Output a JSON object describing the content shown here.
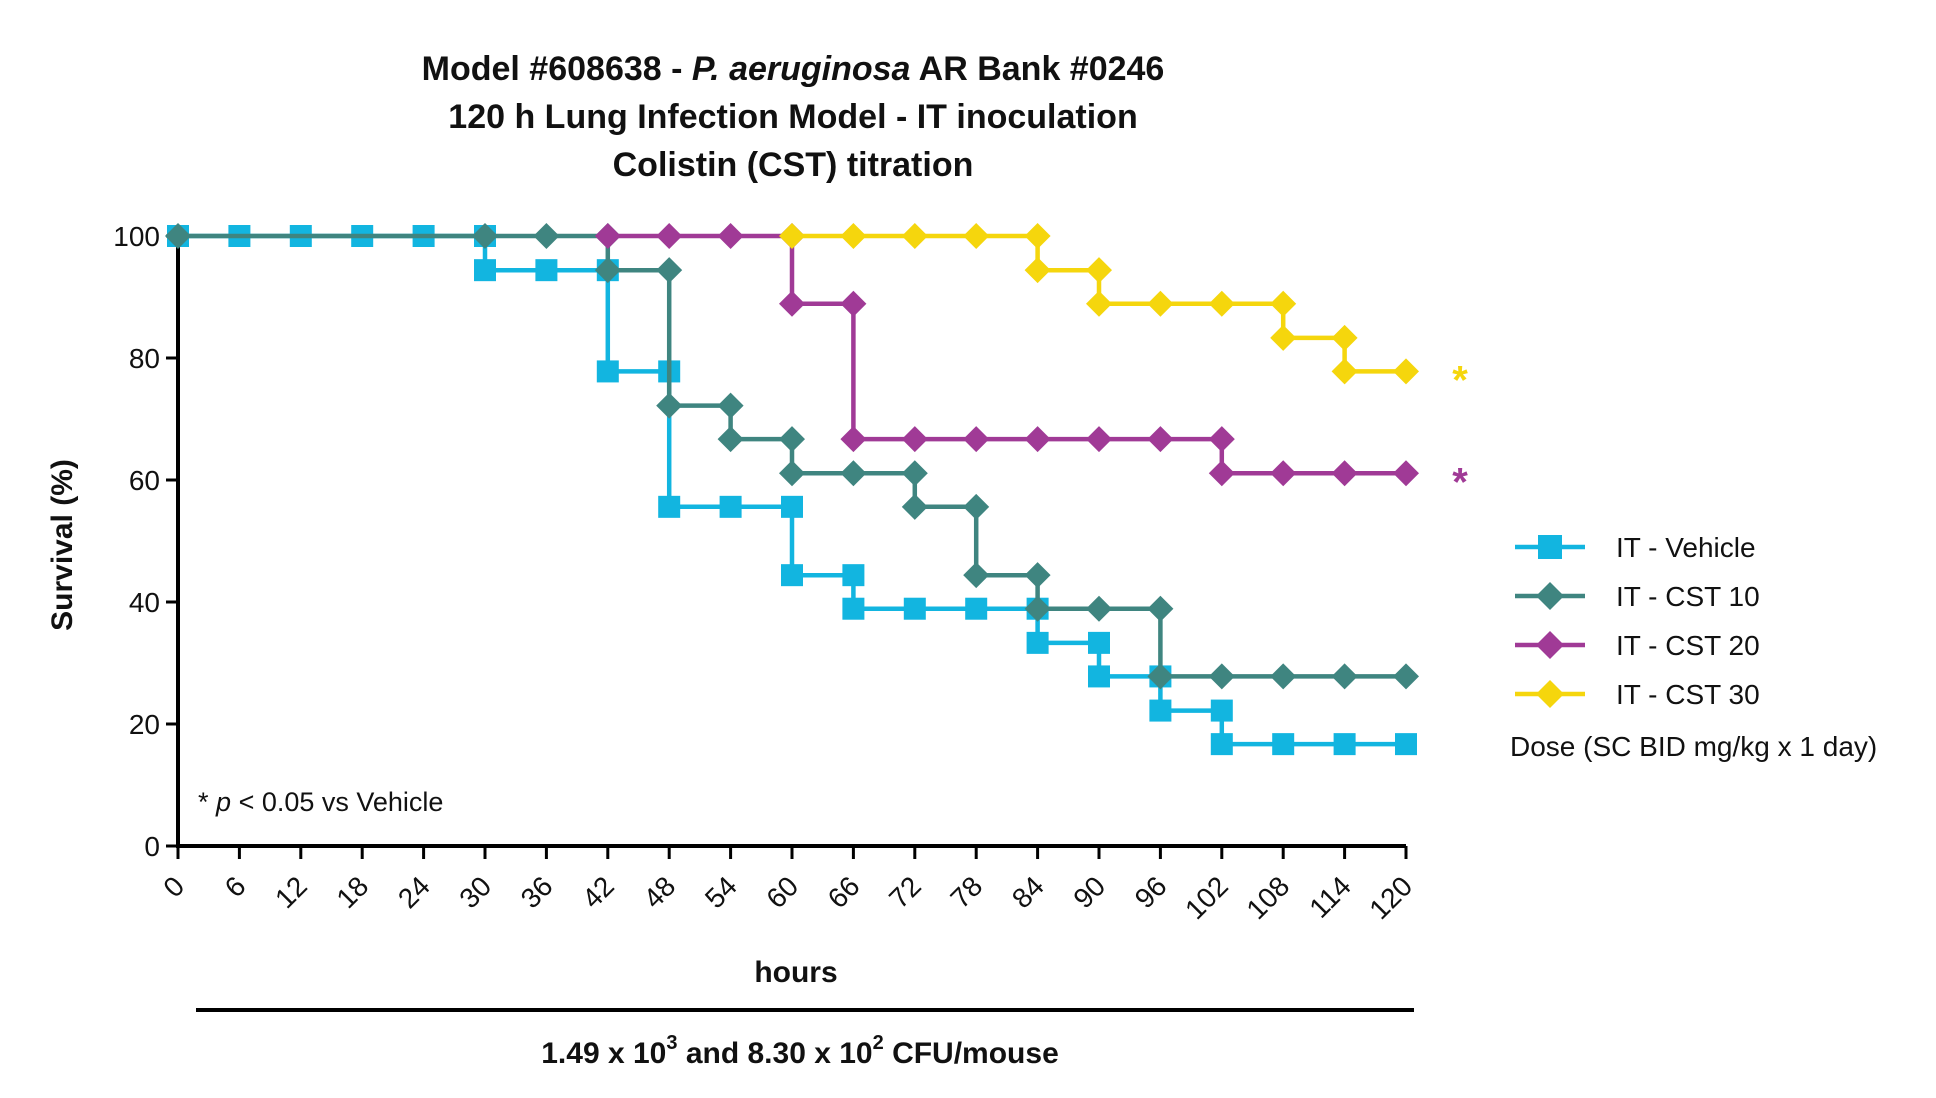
{
  "chart_data": {
    "type": "line",
    "title_lines": [
      {
        "pre": "Model #608638 - ",
        "italic": "P. aeruginosa",
        "post": " AR Bank #0246"
      },
      {
        "pre": "120 h Lung Infection Model - IT inoculation",
        "italic": "",
        "post": ""
      },
      {
        "pre": "Colistin (CST) titration",
        "italic": "",
        "post": ""
      }
    ],
    "xlabel": "hours",
    "ylabel": "Survival (%)",
    "xlim": [
      0,
      120
    ],
    "ylim": [
      0,
      100
    ],
    "x_ticks": [
      "0",
      "6",
      "12",
      "18",
      "24",
      "30",
      "36",
      "42",
      "48",
      "54",
      "60",
      "66",
      "72",
      "78",
      "84",
      "90",
      "96",
      "102",
      "108",
      "114",
      "120"
    ],
    "y_ticks": [
      "0",
      "20",
      "40",
      "60",
      "80",
      "100"
    ],
    "step": true,
    "grid": false,
    "legend_position": "right",
    "legend_note": "Dose (SC BID mg/kg x 1 day)",
    "annotation": {
      "star": "*",
      "italic": "p",
      "rest": " < 0.05 vs Vehicle"
    },
    "footer": {
      "a": "1.49 x 10",
      "a_sup": "3",
      "b": " and 8.30 x 10",
      "b_sup": "2",
      "c": " CFU/mouse"
    },
    "series": [
      {
        "name": "IT - Vehicle",
        "color": "#12b5e0",
        "marker": "square",
        "significant": false,
        "points": [
          [
            0,
            100
          ],
          [
            6,
            100
          ],
          [
            12,
            100
          ],
          [
            18,
            100
          ],
          [
            24,
            100
          ],
          [
            30,
            100
          ],
          [
            30,
            94.4
          ],
          [
            36,
            94.4
          ],
          [
            42,
            94.4
          ],
          [
            42,
            77.8
          ],
          [
            48,
            77.8
          ],
          [
            48,
            55.6
          ],
          [
            54,
            55.6
          ],
          [
            60,
            55.6
          ],
          [
            60,
            44.4
          ],
          [
            66,
            44.4
          ],
          [
            66,
            38.9
          ],
          [
            72,
            38.9
          ],
          [
            78,
            38.9
          ],
          [
            84,
            38.9
          ],
          [
            84,
            33.3
          ],
          [
            90,
            33.3
          ],
          [
            90,
            27.8
          ],
          [
            96,
            27.8
          ],
          [
            96,
            22.2
          ],
          [
            102,
            22.2
          ],
          [
            102,
            16.7
          ],
          [
            108,
            16.7
          ],
          [
            114,
            16.7
          ],
          [
            120,
            16.7
          ]
        ]
      },
      {
        "name": "IT - CST 10",
        "color": "#3f8580",
        "marker": "diamond",
        "significant": false,
        "points": [
          [
            0,
            100
          ],
          [
            30,
            100
          ],
          [
            36,
            100
          ],
          [
            42,
            100
          ],
          [
            42,
            94.4
          ],
          [
            48,
            94.4
          ],
          [
            48,
            72.2
          ],
          [
            54,
            72.2
          ],
          [
            54,
            66.7
          ],
          [
            60,
            66.7
          ],
          [
            60,
            61.1
          ],
          [
            66,
            61.1
          ],
          [
            72,
            61.1
          ],
          [
            72,
            55.6
          ],
          [
            78,
            55.6
          ],
          [
            78,
            44.4
          ],
          [
            84,
            44.4
          ],
          [
            84,
            38.9
          ],
          [
            90,
            38.9
          ],
          [
            96,
            38.9
          ],
          [
            96,
            27.8
          ],
          [
            102,
            27.8
          ],
          [
            108,
            27.8
          ],
          [
            114,
            27.8
          ],
          [
            120,
            27.8
          ]
        ]
      },
      {
        "name": "IT - CST 20",
        "color": "#a03a96",
        "marker": "diamond",
        "significant": true,
        "points": [
          [
            42,
            100
          ],
          [
            48,
            100
          ],
          [
            54,
            100
          ],
          [
            60,
            100
          ],
          [
            60,
            88.9
          ],
          [
            66,
            88.9
          ],
          [
            66,
            66.7
          ],
          [
            72,
            66.7
          ],
          [
            78,
            66.7
          ],
          [
            84,
            66.7
          ],
          [
            90,
            66.7
          ],
          [
            96,
            66.7
          ],
          [
            102,
            66.7
          ],
          [
            102,
            61.1
          ],
          [
            108,
            61.1
          ],
          [
            114,
            61.1
          ],
          [
            120,
            61.1
          ]
        ]
      },
      {
        "name": "IT - CST 30",
        "color": "#f5d60d",
        "marker": "diamond",
        "significant": true,
        "points": [
          [
            60,
            100
          ],
          [
            66,
            100
          ],
          [
            72,
            100
          ],
          [
            78,
            100
          ],
          [
            84,
            100
          ],
          [
            84,
            94.4
          ],
          [
            90,
            94.4
          ],
          [
            90,
            88.9
          ],
          [
            96,
            88.9
          ],
          [
            102,
            88.9
          ],
          [
            108,
            88.9
          ],
          [
            108,
            83.3
          ],
          [
            114,
            83.3
          ],
          [
            114,
            77.8
          ],
          [
            120,
            77.8
          ]
        ]
      }
    ]
  }
}
